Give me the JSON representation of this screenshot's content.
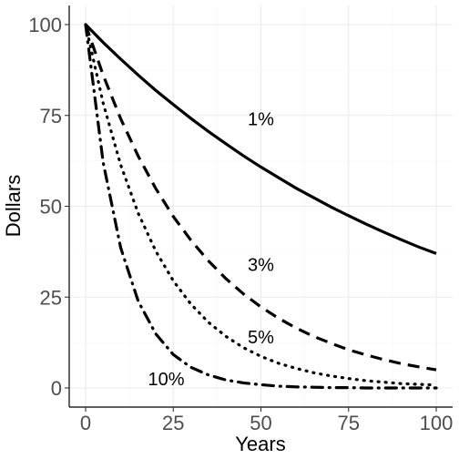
{
  "chart_data": {
    "type": "line",
    "title": "",
    "xlabel": "Years",
    "ylabel": "Dollars",
    "xlim": [
      0,
      100
    ],
    "ylim": [
      0,
      100
    ],
    "x_ticks": [
      0,
      25,
      50,
      75,
      100
    ],
    "y_ticks": [
      0,
      25,
      50,
      75,
      100
    ],
    "x_tick_labels": [
      "0",
      "25",
      "50",
      "75",
      "100"
    ],
    "y_tick_labels": [
      "0",
      "25",
      "50",
      "75",
      "100"
    ],
    "grid": true,
    "legend": "none",
    "x": [
      0,
      5,
      10,
      15,
      20,
      25,
      30,
      35,
      40,
      45,
      50,
      55,
      60,
      65,
      70,
      75,
      80,
      85,
      90,
      95,
      100
    ],
    "series": [
      {
        "rate": "1%",
        "line_style": "solid",
        "values": [
          100,
          95.1,
          90.5,
          86.1,
          81.9,
          78.0,
          74.2,
          70.6,
          67.2,
          63.9,
          60.8,
          57.9,
          55.0,
          52.4,
          49.8,
          47.4,
          45.1,
          42.9,
          40.8,
          38.8,
          37.0
        ]
      },
      {
        "rate": "3%",
        "line_style": "dashed",
        "values": [
          100,
          86.1,
          74.1,
          63.8,
          54.9,
          47.2,
          40.7,
          35.0,
          30.1,
          25.9,
          22.3,
          19.2,
          16.5,
          14.2,
          12.3,
          10.5,
          9.1,
          7.8,
          6.7,
          5.8,
          5.0
        ]
      },
      {
        "rate": "5%",
        "line_style": "dotted",
        "values": [
          100,
          78.4,
          61.4,
          48.1,
          37.7,
          29.5,
          23.1,
          18.1,
          14.2,
          11.1,
          8.7,
          6.8,
          5.4,
          4.2,
          3.3,
          2.6,
          2.0,
          1.6,
          1.2,
          1.0,
          0.8
        ]
      },
      {
        "rate": "10%",
        "line_style": "dashdot",
        "values": [
          100,
          62.1,
          38.6,
          23.9,
          14.9,
          9.2,
          5.7,
          3.6,
          2.2,
          1.4,
          0.9,
          0.5,
          0.3,
          0.2,
          0.1,
          0.1,
          0.0,
          0.0,
          0.0,
          0.0,
          0.0
        ]
      }
    ],
    "annotations": [
      {
        "text": "1%",
        "series": 0,
        "x": 50,
        "y": 74
      },
      {
        "text": "3%",
        "series": 1,
        "x": 50,
        "y": 34
      },
      {
        "text": "5%",
        "series": 2,
        "x": 50,
        "y": 14
      },
      {
        "text": "10%",
        "series": 3,
        "x": 23,
        "y": 2.5
      }
    ]
  }
}
